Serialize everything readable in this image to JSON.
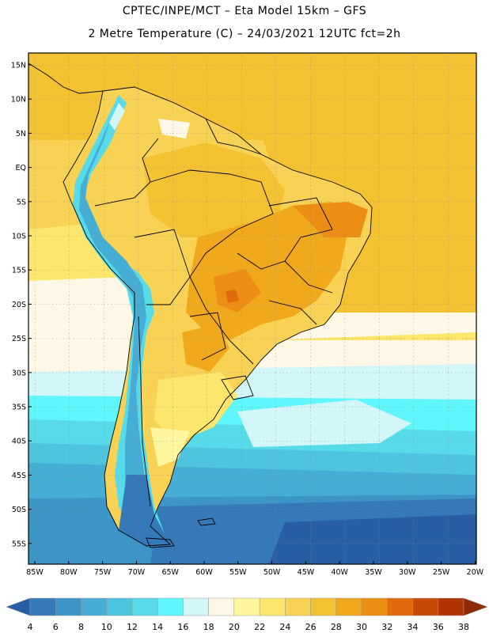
{
  "header": {
    "title_line1": "CPTEC/INPE/MCT –  Eta Model 15km – GFS",
    "title_line2": "2 Metre Temperature (C) – 24/03/2021 12UTC fct=2h"
  },
  "map": {
    "lat_labels": [
      "15N",
      "10N",
      "5N",
      "EQ",
      "5S",
      "10S",
      "15S",
      "20S",
      "25S",
      "30S",
      "35S",
      "40S",
      "45S",
      "50S",
      "55S"
    ],
    "lon_labels": [
      "85W",
      "80W",
      "75W",
      "70W",
      "65W",
      "60W",
      "55W",
      "50W",
      "45W",
      "40W",
      "35W",
      "30W",
      "25W",
      "20W"
    ]
  },
  "colorbar": {
    "levels": [
      "4",
      "6",
      "8",
      "10",
      "12",
      "14",
      "16",
      "18",
      "20",
      "22",
      "24",
      "26",
      "28",
      "30",
      "32",
      "34",
      "36",
      "38"
    ],
    "colors": [
      "#2a5ea4",
      "#3579b9",
      "#3d94c7",
      "#46aed5",
      "#4fc4df",
      "#57dbe8",
      "#5ff7fb",
      "#d3f6f8",
      "#fff8e6",
      "#fff7a0",
      "#fde66c",
      "#f8d255",
      "#f3c232",
      "#f0a81d",
      "#ec8e15",
      "#e06b0d",
      "#c74a08",
      "#b13504",
      "#8f2a03"
    ]
  }
}
